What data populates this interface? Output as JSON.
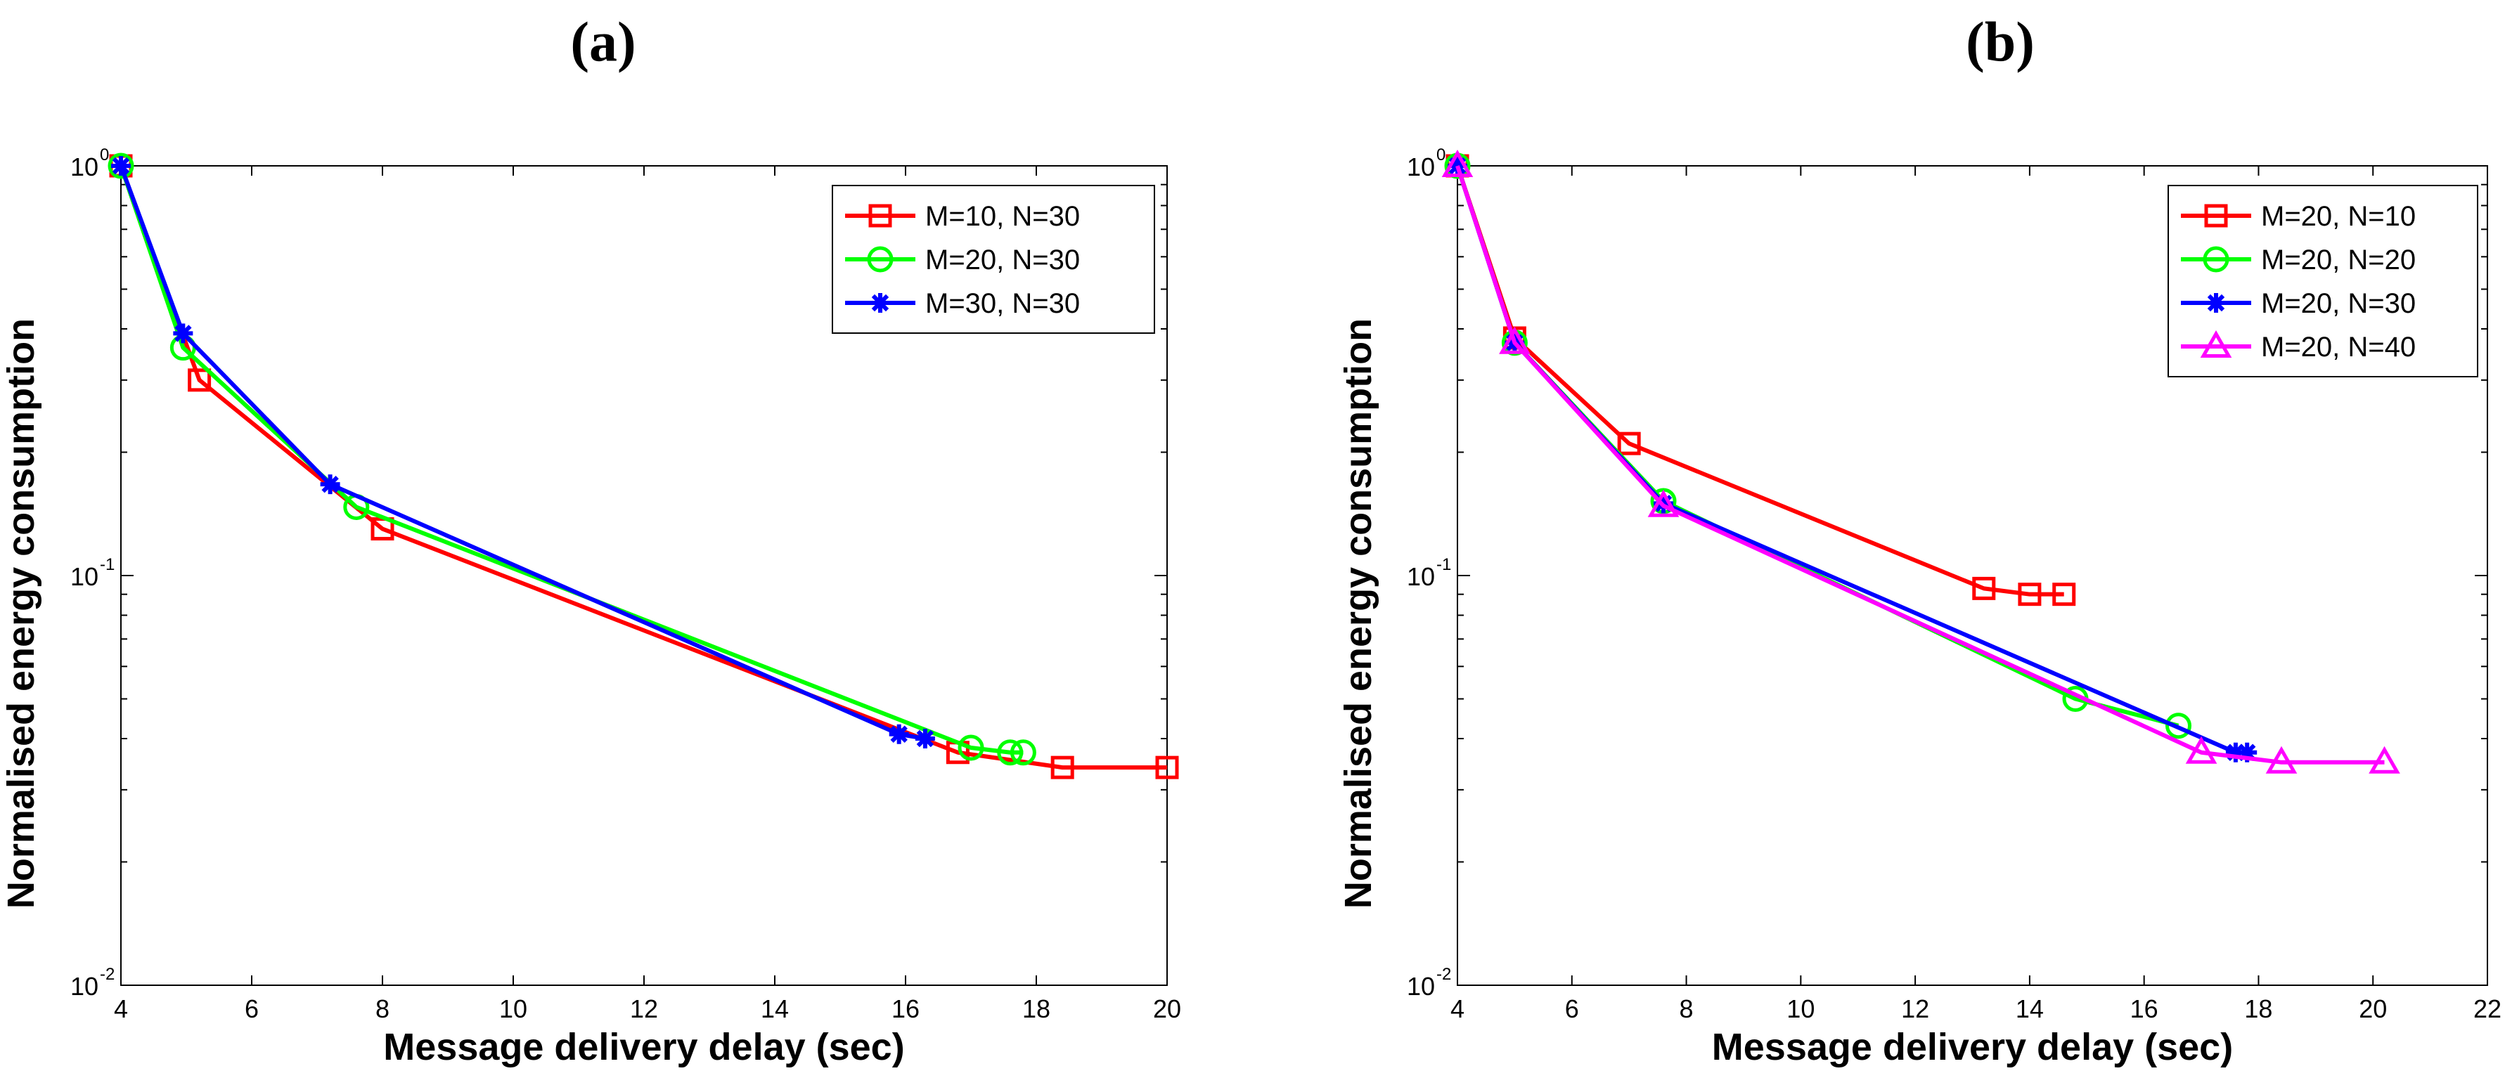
{
  "chart_data": [
    {
      "type": "line",
      "panel_label": "(a)",
      "xlabel": "Message delivery delay (sec)",
      "ylabel": "Normalised energy consumption",
      "yscale": "log",
      "xlim": [
        4,
        20
      ],
      "ylim": [
        0.01,
        1
      ],
      "xticks": [
        4,
        6,
        8,
        10,
        12,
        14,
        16,
        18,
        20
      ],
      "xtick_labels": [
        "4",
        "6",
        "8",
        "10",
        "12",
        "14",
        "16",
        "18",
        "20"
      ],
      "yticks": [
        {
          "value": 0.01,
          "base": "10",
          "exp": "-2"
        },
        {
          "value": 0.1,
          "base": "10",
          "exp": "-1"
        },
        {
          "value": 1,
          "base": "10",
          "exp": "0"
        }
      ],
      "legend_position": "top-right",
      "series": [
        {
          "name": "M=10, N=30",
          "color": "#ff0000",
          "marker": "square",
          "x": [
            4,
            5.2,
            8,
            16.8,
            18.4,
            20
          ],
          "y": [
            1.0,
            0.3,
            0.13,
            0.037,
            0.034,
            0.034
          ]
        },
        {
          "name": "M=20, N=30",
          "color": "#00ff00",
          "marker": "circle",
          "x": [
            4,
            4.95,
            7.6,
            17,
            17.6,
            17.8
          ],
          "y": [
            1.0,
            0.36,
            0.147,
            0.038,
            0.037,
            0.037
          ]
        },
        {
          "name": "M=30, N=30",
          "color": "#0000ff",
          "marker": "asterisk",
          "x": [
            4,
            4.95,
            7.2,
            15.9,
            16.3
          ],
          "y": [
            1.0,
            0.39,
            0.167,
            0.041,
            0.04
          ]
        }
      ]
    },
    {
      "type": "line",
      "panel_label": "(b)",
      "xlabel": "Message delivery delay (sec)",
      "ylabel": "Normalised energy consumption",
      "yscale": "log",
      "xlim": [
        4,
        22
      ],
      "ylim": [
        0.01,
        1
      ],
      "xticks": [
        4,
        6,
        8,
        10,
        12,
        14,
        16,
        18,
        20,
        22
      ],
      "xtick_labels": [
        "4",
        "6",
        "8",
        "10",
        "12",
        "14",
        "16",
        "18",
        "20",
        "22"
      ],
      "yticks": [
        {
          "value": 0.01,
          "base": "10",
          "exp": "-2"
        },
        {
          "value": 0.1,
          "base": "10",
          "exp": "-1"
        },
        {
          "value": 1,
          "base": "10",
          "exp": "0"
        }
      ],
      "legend_position": "top-right",
      "series": [
        {
          "name": "M=20, N=10",
          "color": "#ff0000",
          "marker": "square",
          "x": [
            4,
            5,
            7,
            13.2,
            14,
            14.6
          ],
          "y": [
            1.0,
            0.38,
            0.21,
            0.093,
            0.09,
            0.09
          ]
        },
        {
          "name": "M=20, N=20",
          "color": "#00ff00",
          "marker": "circle",
          "x": [
            4,
            5,
            7.6,
            14.8,
            16.6
          ],
          "y": [
            1.0,
            0.37,
            0.152,
            0.05,
            0.043
          ]
        },
        {
          "name": "M=20, N=30",
          "color": "#0000ff",
          "marker": "asterisk",
          "x": [
            4,
            5,
            7.6,
            17.6,
            17.8
          ],
          "y": [
            1.0,
            0.37,
            0.15,
            0.037,
            0.037
          ]
        },
        {
          "name": "M=20, N=40",
          "color": "#ff00ff",
          "marker": "triangle",
          "x": [
            4,
            5,
            7.6,
            17,
            18.4,
            20.2
          ],
          "y": [
            1.0,
            0.37,
            0.148,
            0.037,
            0.035,
            0.035
          ]
        }
      ]
    }
  ]
}
